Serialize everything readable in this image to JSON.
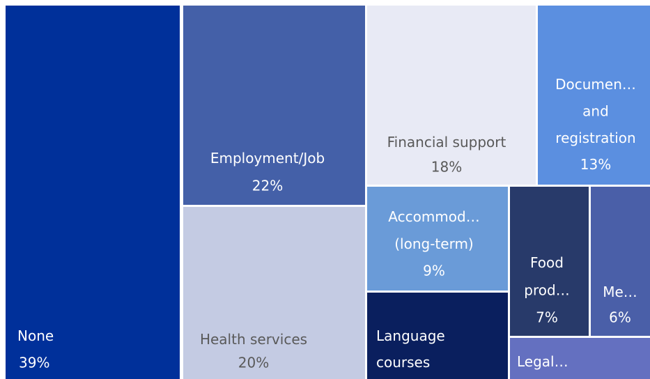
{
  "chart_data": {
    "type": "treemap",
    "categories": [
      "None",
      "Employment/Job",
      "Health services",
      "Financial support",
      "Documen… and registration",
      "Accommod… (long-term)",
      "Language courses",
      "Food prod…",
      "Me…",
      "Legal…"
    ],
    "values": [
      39,
      22,
      20,
      18,
      13,
      9,
      8,
      7,
      6,
      5
    ],
    "value_labels": [
      "39%",
      "22%",
      "20%",
      "18%",
      "13%",
      "9%",
      null,
      "7%",
      "6%",
      null
    ],
    "colors": [
      "#00309a",
      "#4460a8",
      "#c4cbe3",
      "#e8eaf5",
      "#5b8fe0",
      "#6a9bd8",
      "#0a1f5e",
      "#283a6a",
      "#4a5fa8",
      "#6470c0"
    ]
  }
}
